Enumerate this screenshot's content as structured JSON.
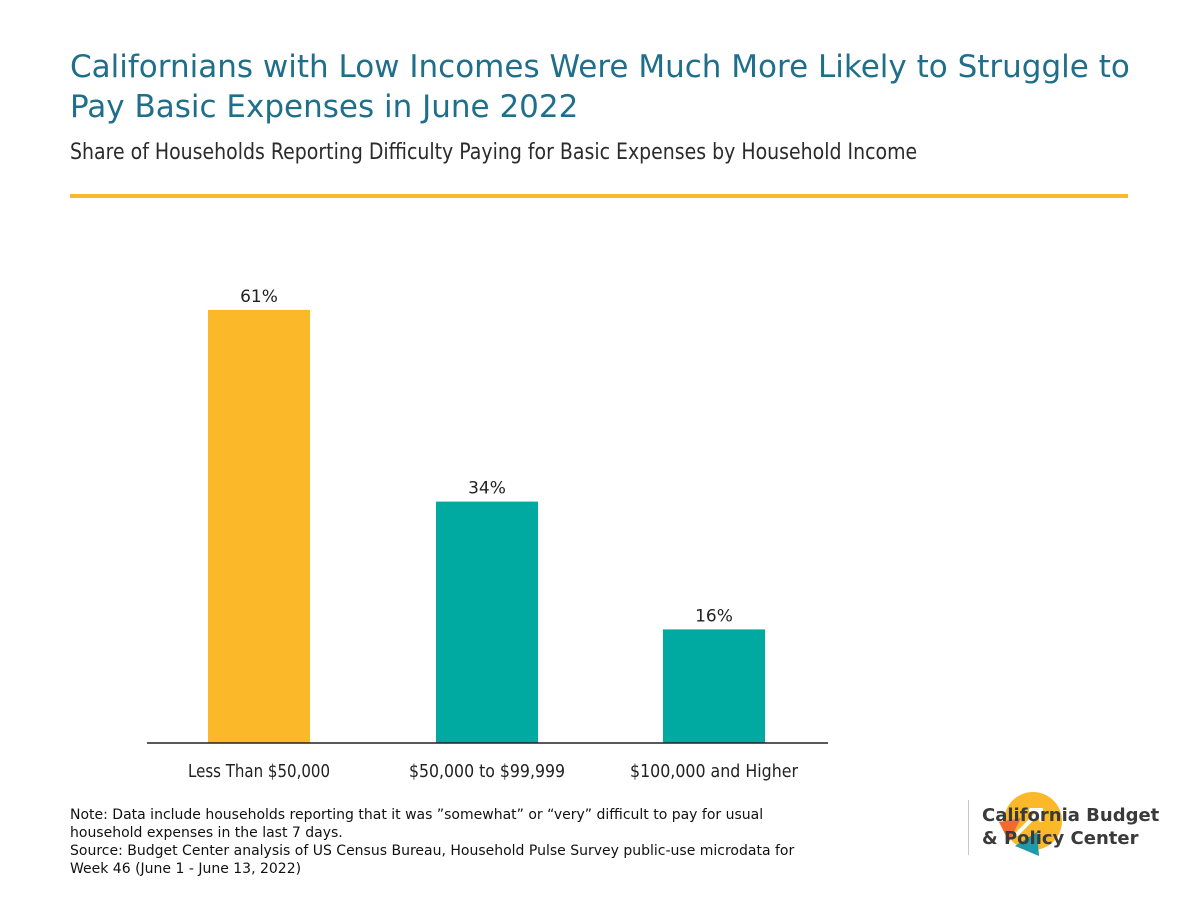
{
  "header": {
    "title": "Californians with Low Incomes Were Much More Likely to Struggle to Pay Basic Expenses in June 2022",
    "subtitle": "Share of Households Reporting Difficulty Paying for Basic Expenses by Household Income"
  },
  "chart_data": {
    "type": "bar",
    "categories": [
      "Less Than $50,000",
      "$50,000 to $99,999",
      "$100,000 and Higher"
    ],
    "values": [
      61,
      34,
      16
    ],
    "data_labels": [
      "61%",
      "34%",
      "16%"
    ],
    "bar_colors": [
      "#fbb829",
      "#00aaa0",
      "#00aaa0"
    ],
    "ylim": [
      0,
      70
    ],
    "grid": false,
    "xlabel": "",
    "ylabel": ""
  },
  "footer": {
    "note_line1": "Note: Data include households reporting that it was ”somewhat” or “very” difficult to pay for usual",
    "note_line2": "household expenses in the last 7 days.",
    "source_line1": "Source: Budget Center analysis of US Census Bureau, Household Pulse Survey public-use microdata for",
    "source_line2": "Week 46 (June 1 - June 13, 2022)"
  },
  "logo": {
    "line1": "California Budget",
    "line2": "& Policy Center",
    "colors": {
      "yellow": "#fbb829",
      "orange": "#f26a30",
      "teal": "#1f9aa8"
    }
  },
  "colors": {
    "title": "#1f6f8b",
    "accent_rule": "#fbb829"
  }
}
